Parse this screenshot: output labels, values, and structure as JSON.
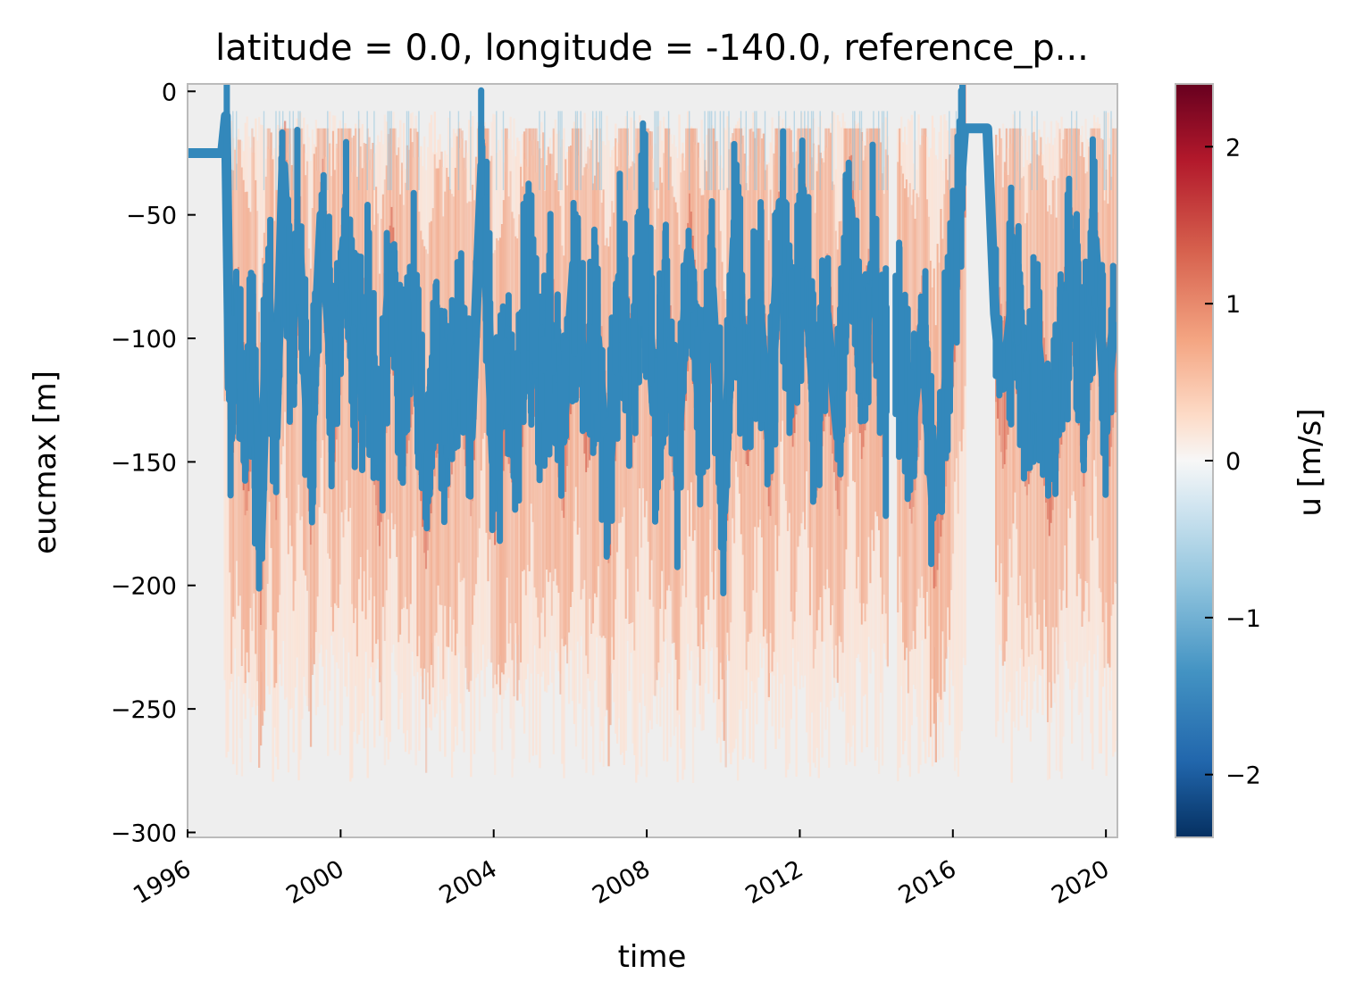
{
  "chart_data": {
    "type": "heatmap",
    "title": "latitude = 0.0, longitude = -140.0, reference_p...",
    "xlabel": "time",
    "ylabel": "eucmax [m]",
    "xlim": [
      1996,
      2020.3
    ],
    "ylim": [
      -302,
      3
    ],
    "x_ticks": [
      1996,
      2000,
      2004,
      2008,
      2012,
      2016,
      2020
    ],
    "x_tick_labels": [
      "1996",
      "2000",
      "2004",
      "2008",
      "2012",
      "2016",
      "2020"
    ],
    "y_ticks": [
      0,
      -50,
      -100,
      -150,
      -200,
      -250,
      -300
    ],
    "y_tick_labels": [
      "0",
      "−50",
      "−100",
      "−150",
      "−200",
      "−250",
      "−300"
    ],
    "colorbar": {
      "label": "u [m/s]",
      "colormap": "RdBu_r",
      "vmin": -2.4,
      "vmax": 2.4,
      "ticks": [
        2,
        1,
        0,
        -1,
        -2
      ],
      "tick_labels": [
        "2",
        "1",
        "0",
        "−1",
        "−2"
      ]
    },
    "grid": false,
    "background_color": "#eeeeee",
    "line_color": "#3388bb",
    "data_gaps": [
      [
        1996.0,
        1996.9
      ],
      [
        2014.3,
        2014.5
      ],
      [
        2016.3,
        2017.1
      ]
    ],
    "series": [
      {
        "type": "line",
        "x": [
          1996.0,
          1996.9,
          1997.0,
          1997.1,
          1997.3,
          1997.5,
          1997.7,
          1997.9,
          1998.1,
          1998.3,
          1998.5,
          1998.7,
          1998.9,
          1999.2,
          1999.5,
          1999.8,
          2000.1,
          2000.4,
          2000.7,
          2001.0,
          2001.3,
          2001.6,
          2001.9,
          2002.2,
          2002.5,
          2002.8,
          2003.1,
          2003.4,
          2003.7,
          2004.0,
          2004.3,
          2004.6,
          2004.9,
          2005.2,
          2005.5,
          2005.8,
          2006.1,
          2006.4,
          2006.7,
          2007.0,
          2007.3,
          2007.6,
          2007.9,
          2008.2,
          2008.5,
          2008.8,
          2009.1,
          2009.4,
          2009.7,
          2010.0,
          2010.3,
          2010.6,
          2010.9,
          2011.2,
          2011.5,
          2011.8,
          2012.1,
          2012.4,
          2012.7,
          2013.0,
          2013.3,
          2013.6,
          2013.9,
          2014.2,
          2014.6,
          2014.9,
          2015.2,
          2015.5,
          2015.8,
          2016.0,
          2016.3,
          2016.6,
          2016.9,
          2017.1,
          2017.3,
          2017.6,
          2017.9,
          2018.2,
          2018.5,
          2018.8,
          2019.1,
          2019.4,
          2019.7,
          2020.0,
          2020.2
        ],
        "y": [
          -25,
          -25,
          -10,
          -120,
          -95,
          -140,
          -105,
          -185,
          -80,
          -140,
          -30,
          -100,
          -60,
          -150,
          -50,
          -120,
          -60,
          -110,
          -95,
          -150,
          -70,
          -125,
          -90,
          -160,
          -110,
          -130,
          -95,
          -140,
          -30,
          -150,
          -110,
          -135,
          -75,
          -120,
          -95,
          -140,
          -70,
          -120,
          -100,
          -160,
          -75,
          -120,
          -50,
          -130,
          -95,
          -145,
          -65,
          -130,
          -80,
          -170,
          -60,
          -120,
          -80,
          -140,
          -45,
          -110,
          -60,
          -130,
          -90,
          -140,
          -45,
          -115,
          -70,
          -125,
          -100,
          -140,
          -95,
          -170,
          -125,
          -80,
          -15,
          -15,
          -15,
          -90,
          -120,
          -80,
          -130,
          -100,
          -145,
          -110,
          -70,
          -125,
          -60,
          -130,
          -95
        ]
      }
    ]
  }
}
